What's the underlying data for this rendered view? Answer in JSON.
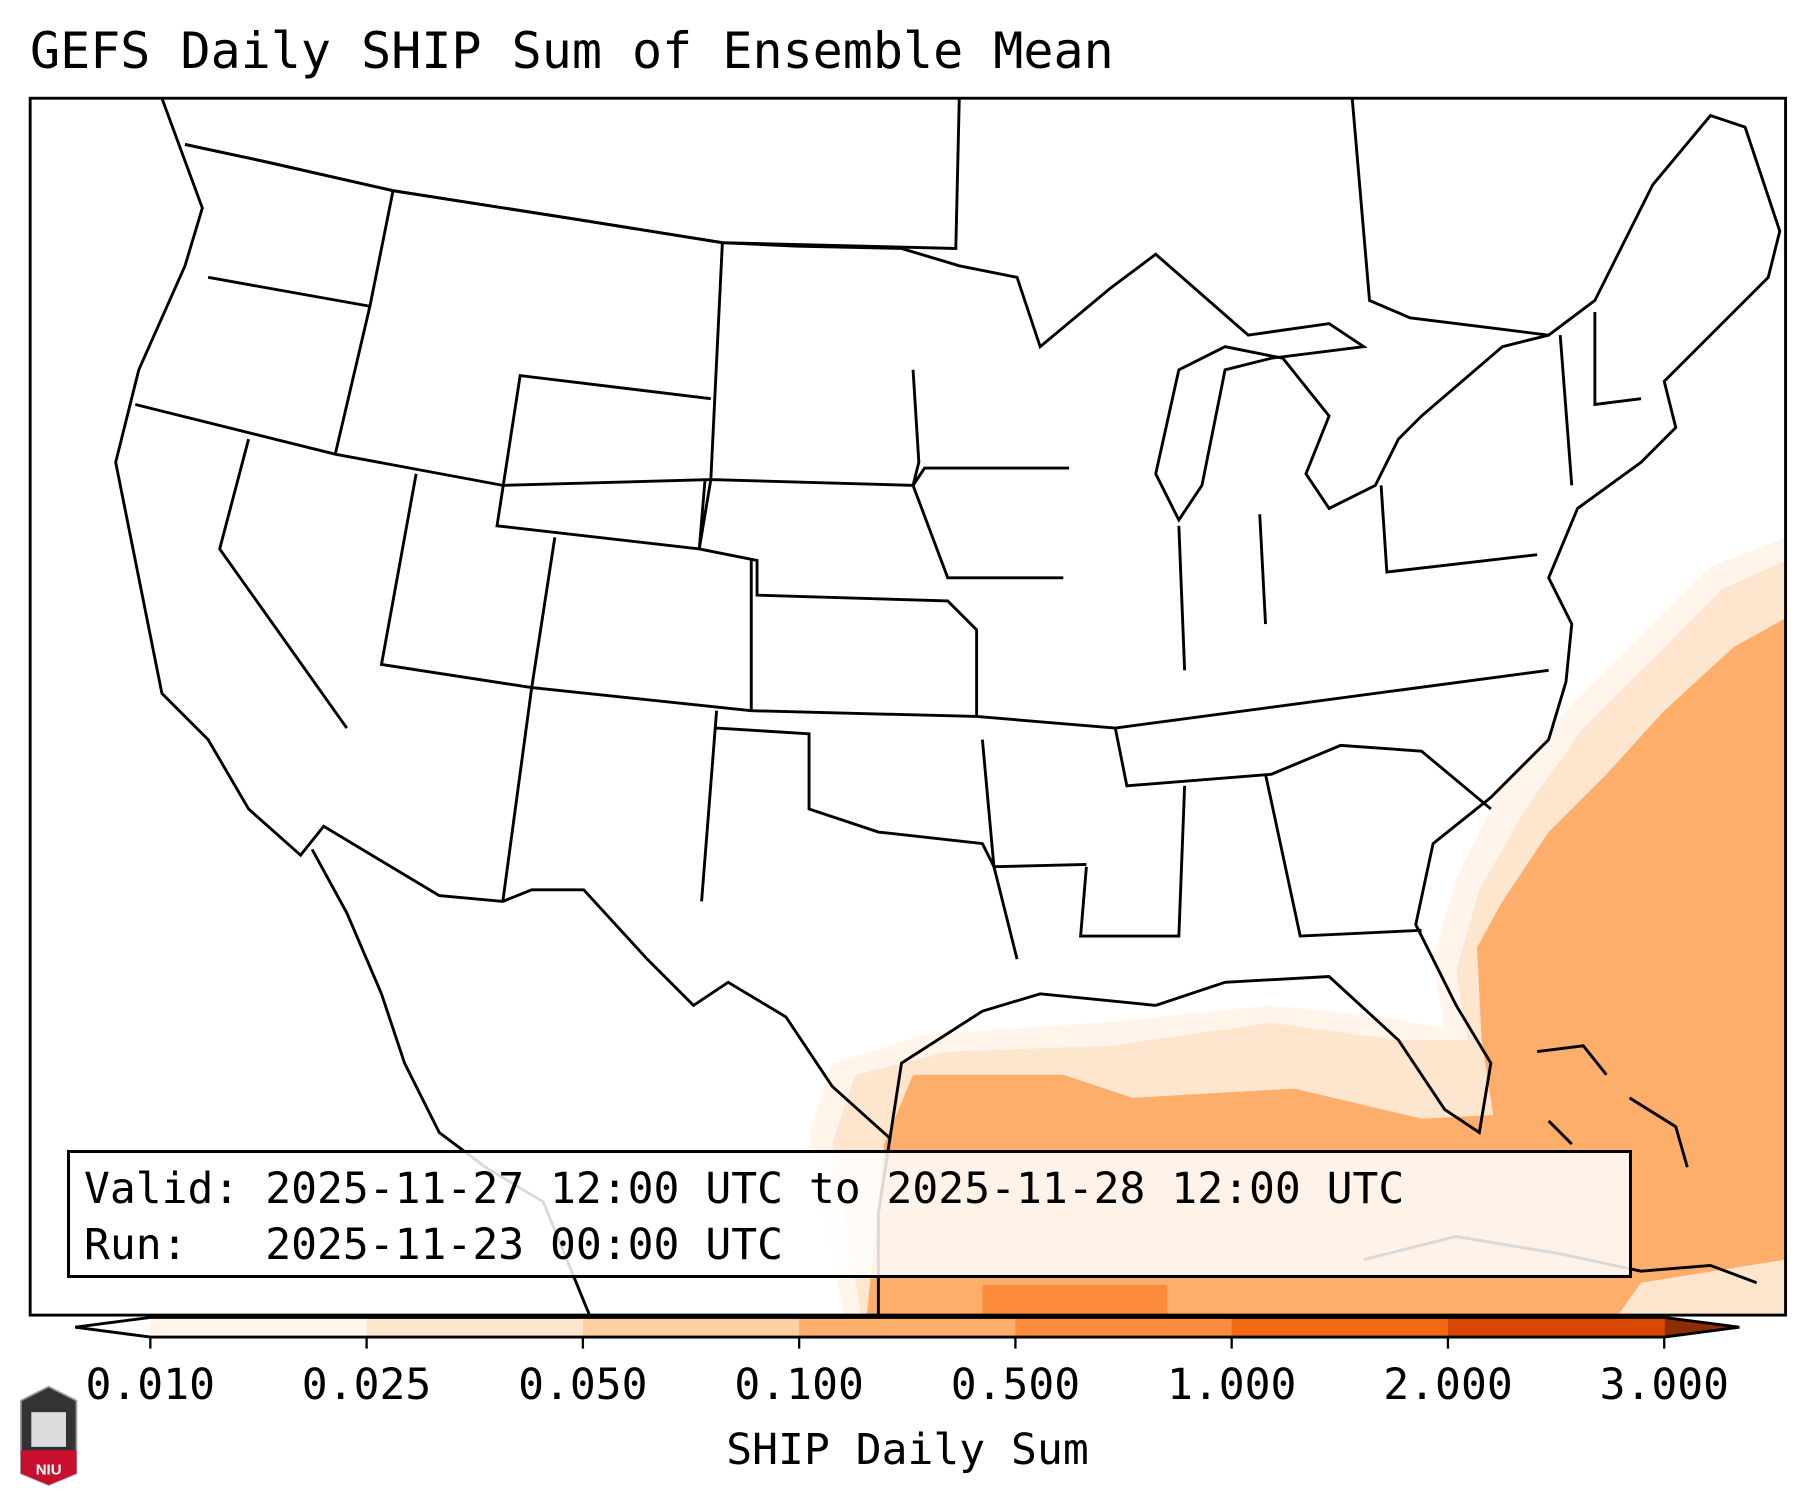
{
  "title": "GEFS Daily SHIP Sum of Ensemble Mean",
  "info": {
    "valid_line": "Valid: 2025-11-27 12:00 UTC to 2025-11-28 12:00 UTC",
    "run_line": "Run:   2025-11-23 00:00 UTC"
  },
  "colorbar": {
    "label": "SHIP Daily Sum",
    "ticks": [
      "0.010",
      "0.025",
      "0.050",
      "0.100",
      "0.500",
      "1.000",
      "2.000",
      "3.000"
    ],
    "colors": [
      "#fff5eb",
      "#fee6ce",
      "#fdd0a2",
      "#fdae6b",
      "#fd8d3c",
      "#f16913",
      "#d94801"
    ],
    "under_color": "#ffffff",
    "over_color": "#8c2d04"
  },
  "logo": {
    "text": "NIU"
  }
}
